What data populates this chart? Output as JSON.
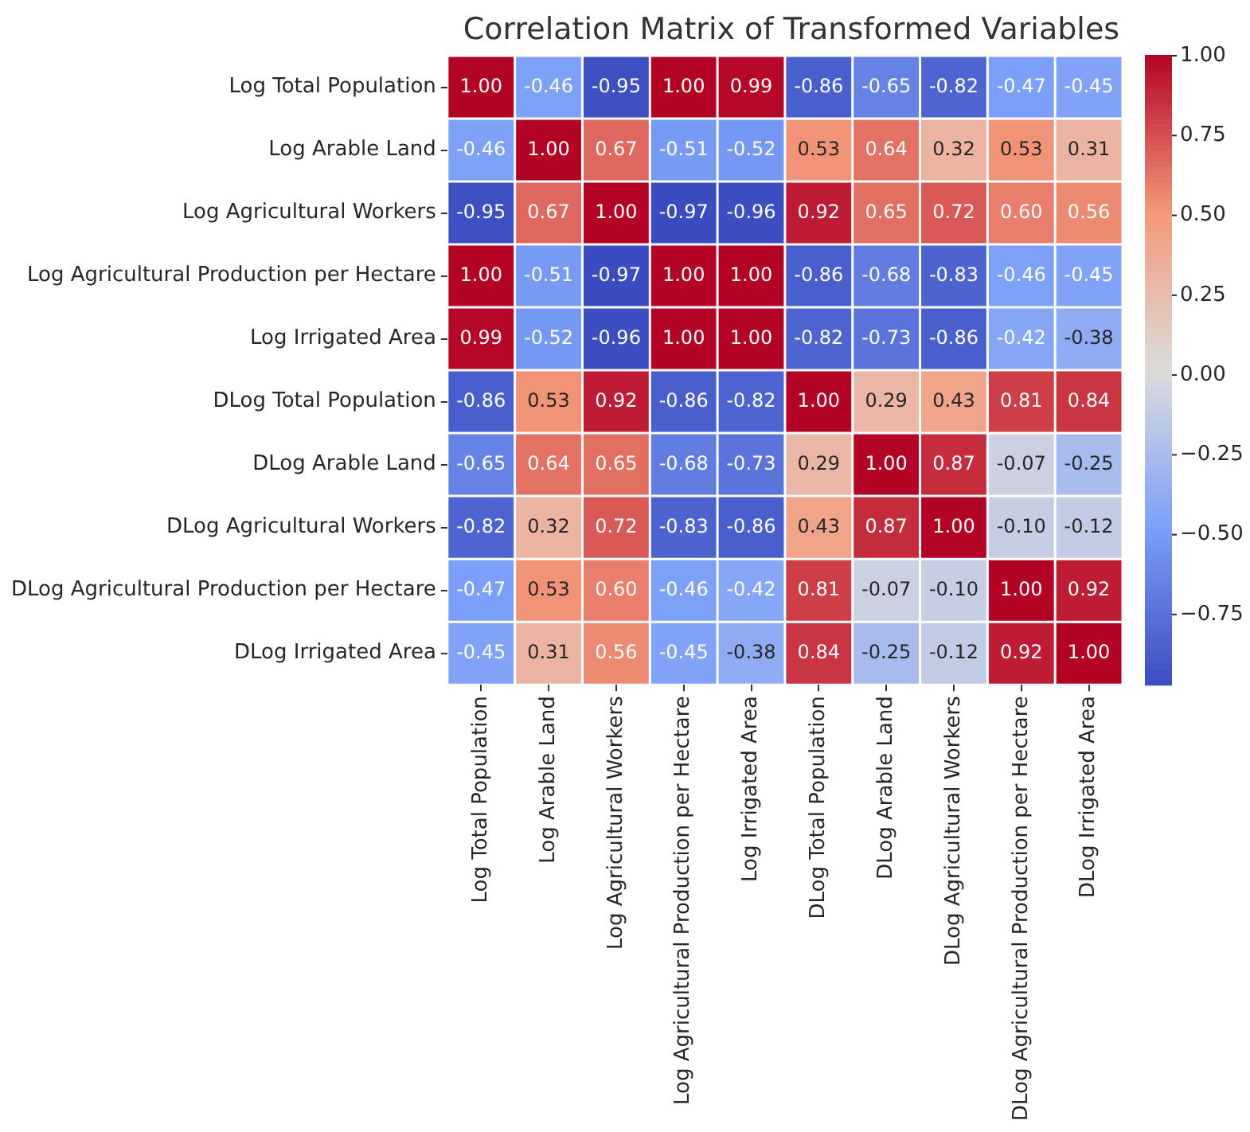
{
  "chart_data": {
    "type": "heatmap",
    "title": "Correlation Matrix of Transformed Variables",
    "categories": [
      "Log Total Population",
      "Log Arable Land",
      "Log Agricultural Workers",
      "Log Agricultural Production per Hectare",
      "Log Irrigated Area",
      "DLog Total Population",
      "DLog Arable Land",
      "DLog Agricultural Workers",
      "DLog Agricultural Production per Hectare",
      "DLog Irrigated Area"
    ],
    "y_categories": [
      "Log Total Population",
      "Log Arable Land",
      "Log Agricultural Workers",
      "Log Agricultural Production per Hectare",
      "Log Irrigated Area",
      "DLog Total Population",
      "DLog Arable Land",
      "DLog Agricultural Workers",
      "DLog Agricultural Production per Hectare",
      "DLog Irrigated Area"
    ],
    "cells": [
      [
        1.0,
        -0.46,
        -0.95,
        1.0,
        0.99,
        -0.86,
        -0.65,
        -0.82,
        -0.47,
        -0.45
      ],
      [
        -0.46,
        1.0,
        0.67,
        -0.51,
        -0.52,
        0.53,
        0.64,
        0.32,
        0.53,
        0.31
      ],
      [
        -0.95,
        0.67,
        1.0,
        -0.97,
        -0.96,
        0.92,
        0.65,
        0.72,
        0.6,
        0.56
      ],
      [
        1.0,
        -0.51,
        -0.97,
        1.0,
        1.0,
        -0.86,
        -0.68,
        -0.83,
        -0.46,
        -0.45
      ],
      [
        0.99,
        -0.52,
        -0.96,
        1.0,
        1.0,
        -0.82,
        -0.73,
        -0.86,
        -0.42,
        -0.38
      ],
      [
        -0.86,
        0.53,
        0.92,
        -0.86,
        -0.82,
        1.0,
        0.29,
        0.43,
        0.81,
        0.84
      ],
      [
        -0.65,
        0.64,
        0.65,
        -0.68,
        -0.73,
        0.29,
        1.0,
        0.87,
        -0.07,
        -0.25
      ],
      [
        -0.82,
        0.32,
        0.72,
        -0.83,
        -0.86,
        0.43,
        0.87,
        1.0,
        -0.1,
        -0.12
      ],
      [
        -0.47,
        0.53,
        0.6,
        -0.46,
        -0.42,
        0.81,
        -0.07,
        -0.1,
        1.0,
        0.92
      ],
      [
        -0.45,
        0.31,
        0.56,
        -0.45,
        -0.38,
        0.84,
        -0.25,
        -0.12,
        0.92,
        1.0
      ]
    ],
    "cell_labels": [
      [
        "1.00",
        "-0.46",
        "-0.95",
        "1.00",
        "0.99",
        "-0.86",
        "-0.65",
        "-0.82",
        "-0.47",
        "-0.45"
      ],
      [
        "-0.46",
        "1.00",
        "0.67",
        "-0.51",
        "-0.52",
        "0.53",
        "0.64",
        "0.32",
        "0.53",
        "0.31"
      ],
      [
        "-0.95",
        "0.67",
        "1.00",
        "-0.97",
        "-0.96",
        "0.92",
        "0.65",
        "0.72",
        "0.60",
        "0.56"
      ],
      [
        "1.00",
        "-0.51",
        "-0.97",
        "1.00",
        "1.00",
        "-0.86",
        "-0.68",
        "-0.83",
        "-0.46",
        "-0.45"
      ],
      [
        "0.99",
        "-0.52",
        "-0.96",
        "1.00",
        "1.00",
        "-0.82",
        "-0.73",
        "-0.86",
        "-0.42",
        "-0.38"
      ],
      [
        "-0.86",
        "0.53",
        "0.92",
        "-0.86",
        "-0.82",
        "1.00",
        "0.29",
        "0.43",
        "0.81",
        "0.84"
      ],
      [
        "-0.65",
        "0.64",
        "0.65",
        "-0.68",
        "-0.73",
        "0.29",
        "1.00",
        "0.87",
        "-0.07",
        "-0.25"
      ],
      [
        "-0.82",
        "0.32",
        "0.72",
        "-0.83",
        "-0.86",
        "0.43",
        "0.87",
        "1.00",
        "-0.10",
        "-0.12"
      ],
      [
        "-0.47",
        "0.53",
        "0.60",
        "-0.46",
        "-0.42",
        "0.81",
        "-0.07",
        "-0.10",
        "1.00",
        "0.92"
      ],
      [
        "-0.45",
        "0.31",
        "0.56",
        "-0.45",
        "-0.38",
        "0.84",
        "-0.25",
        "-0.12",
        "0.92",
        "1.00"
      ]
    ],
    "data_labels": true,
    "clim": [
      -0.97,
      1.0
    ],
    "cticks": [
      {
        "value": -0.75,
        "label": "−0.75"
      },
      {
        "value": -0.5,
        "label": "−0.50"
      },
      {
        "value": -0.25,
        "label": "−0.25"
      },
      {
        "value": 0,
        "label": "0.00"
      },
      {
        "value": 0.25,
        "label": "0.25"
      },
      {
        "value": 0.5,
        "label": "0.50"
      },
      {
        "value": 0.75,
        "label": "0.75"
      },
      {
        "value": 1,
        "label": "1.00"
      }
    ]
  }
}
